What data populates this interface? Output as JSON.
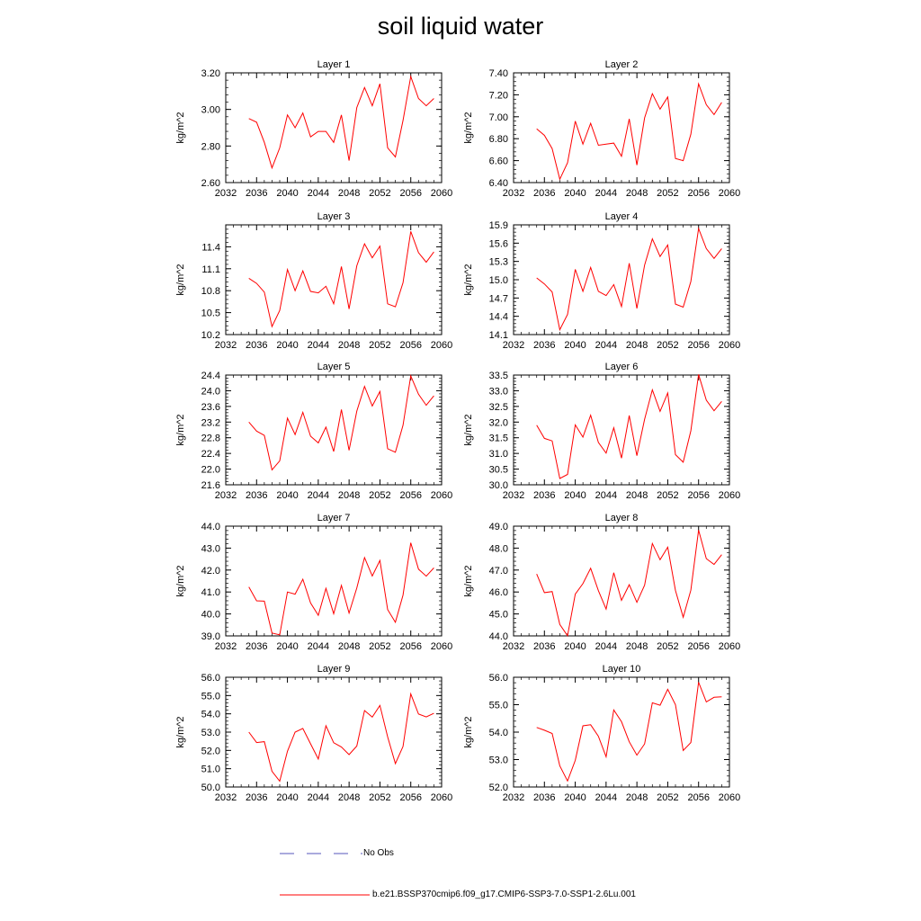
{
  "title": "soil liquid water",
  "legend": {
    "obs_label": "No Obs",
    "obs_color": "#5555bb",
    "model_label": "b.e21.BSSP370cmip6.f09_g17.CMIP6-SSP3-7.0-SSP1-2.6Lu.001",
    "model_color": "#ff0000"
  },
  "chart_data": [
    {
      "type": "line",
      "title": "Layer 1",
      "ylabel": "kg/m^2",
      "xlim": [
        2032,
        2060
      ],
      "ylim": [
        2.6,
        3.2
      ],
      "xticks": [
        2032,
        2036,
        2040,
        2044,
        2048,
        2052,
        2056,
        2060
      ],
      "yticks": [
        "2.60",
        "2.80",
        "3.00",
        "3.20"
      ],
      "x": [
        2035,
        2036,
        2037,
        2038,
        2039,
        2040,
        2041,
        2042,
        2043,
        2044,
        2045,
        2046,
        2047,
        2048,
        2049,
        2050,
        2051,
        2052,
        2053,
        2054,
        2055,
        2056,
        2057,
        2058,
        2059
      ],
      "series": [
        {
          "name": "b.e21.BSSP370cmip6.f09_g17.CMIP6-SSP3-7.0-SSP1-2.6Lu.001",
          "values": [
            2.95,
            2.93,
            2.82,
            2.68,
            2.79,
            2.97,
            2.9,
            2.98,
            2.85,
            2.88,
            2.88,
            2.82,
            2.97,
            2.72,
            3.01,
            3.12,
            3.02,
            3.14,
            2.79,
            2.74,
            2.94,
            3.18,
            3.06,
            3.02,
            3.06
          ]
        }
      ]
    },
    {
      "type": "line",
      "title": "Layer 2",
      "ylabel": "kg/m^2",
      "xlim": [
        2032,
        2060
      ],
      "ylim": [
        6.4,
        7.4
      ],
      "xticks": [
        2032,
        2036,
        2040,
        2044,
        2048,
        2052,
        2056,
        2060
      ],
      "yticks": [
        "6.40",
        "6.60",
        "6.80",
        "7.00",
        "7.20",
        "7.40"
      ],
      "x": [
        2035,
        2036,
        2037,
        2038,
        2039,
        2040,
        2041,
        2042,
        2043,
        2044,
        2045,
        2046,
        2047,
        2048,
        2049,
        2050,
        2051,
        2052,
        2053,
        2054,
        2055,
        2056,
        2057,
        2058,
        2059
      ],
      "series": [
        {
          "name": "b.e21.BSSP370cmip6.f09_g17.CMIP6-SSP3-7.0-SSP1-2.6Lu.001",
          "values": [
            6.89,
            6.83,
            6.71,
            6.43,
            6.58,
            6.96,
            6.75,
            6.94,
            6.74,
            6.75,
            6.76,
            6.64,
            6.98,
            6.56,
            6.99,
            7.21,
            7.07,
            7.18,
            6.62,
            6.6,
            6.84,
            7.3,
            7.11,
            7.02,
            7.13
          ]
        }
      ]
    },
    {
      "type": "line",
      "title": "Layer 3",
      "ylabel": "kg/m^2",
      "xlim": [
        2032,
        2060
      ],
      "ylim": [
        10.2,
        11.7
      ],
      "xticks": [
        2032,
        2036,
        2040,
        2044,
        2048,
        2052,
        2056,
        2060
      ],
      "yticks": [
        "10.2",
        "10.5",
        "10.8",
        "11.1",
        "11.4"
      ],
      "x": [
        2035,
        2036,
        2037,
        2038,
        2039,
        2040,
        2041,
        2042,
        2043,
        2044,
        2045,
        2046,
        2047,
        2048,
        2049,
        2050,
        2051,
        2052,
        2053,
        2054,
        2055,
        2056,
        2057,
        2058,
        2059
      ],
      "series": [
        {
          "name": "b.e21.BSSP370cmip6.f09_g17.CMIP6-SSP3-7.0-SSP1-2.6Lu.001",
          "values": [
            10.97,
            10.9,
            10.78,
            10.31,
            10.53,
            11.09,
            10.8,
            11.07,
            10.79,
            10.77,
            10.86,
            10.62,
            11.13,
            10.55,
            11.14,
            11.44,
            11.25,
            11.41,
            10.62,
            10.58,
            10.91,
            11.61,
            11.32,
            11.19,
            11.33
          ]
        }
      ]
    },
    {
      "type": "line",
      "title": "Layer 4",
      "ylabel": "kg/m^2",
      "xlim": [
        2032,
        2060
      ],
      "ylim": [
        14.1,
        15.9
      ],
      "xticks": [
        2032,
        2036,
        2040,
        2044,
        2048,
        2052,
        2056,
        2060
      ],
      "yticks": [
        "14.1",
        "14.4",
        "14.7",
        "15.0",
        "15.3",
        "15.6",
        "15.9"
      ],
      "x": [
        2035,
        2036,
        2037,
        2038,
        2039,
        2040,
        2041,
        2042,
        2043,
        2044,
        2045,
        2046,
        2047,
        2048,
        2049,
        2050,
        2051,
        2052,
        2053,
        2054,
        2055,
        2056,
        2057,
        2058,
        2059
      ],
      "series": [
        {
          "name": "b.e21.BSSP370cmip6.f09_g17.CMIP6-SSP3-7.0-SSP1-2.6Lu.001",
          "values": [
            15.03,
            14.93,
            14.8,
            14.18,
            14.43,
            15.17,
            14.81,
            15.2,
            14.81,
            14.74,
            14.92,
            14.56,
            15.27,
            14.53,
            15.24,
            15.67,
            15.38,
            15.57,
            14.6,
            14.55,
            14.97,
            15.84,
            15.51,
            15.35,
            15.51
          ]
        }
      ]
    },
    {
      "type": "line",
      "title": "Layer 5",
      "ylabel": "kg/m^2",
      "xlim": [
        2032,
        2060
      ],
      "ylim": [
        21.6,
        24.4
      ],
      "xticks": [
        2032,
        2036,
        2040,
        2044,
        2048,
        2052,
        2056,
        2060
      ],
      "yticks": [
        "21.6",
        "22.0",
        "22.4",
        "22.8",
        "23.2",
        "23.6",
        "24.0",
        "24.4"
      ],
      "x": [
        2035,
        2036,
        2037,
        2038,
        2039,
        2040,
        2041,
        2042,
        2043,
        2044,
        2045,
        2046,
        2047,
        2048,
        2049,
        2050,
        2051,
        2052,
        2053,
        2054,
        2055,
        2056,
        2057,
        2058,
        2059
      ],
      "series": [
        {
          "name": "b.e21.BSSP370cmip6.f09_g17.CMIP6-SSP3-7.0-SSP1-2.6Lu.001",
          "values": [
            23.2,
            22.97,
            22.86,
            21.98,
            22.21,
            23.3,
            22.88,
            23.45,
            22.84,
            22.67,
            23.07,
            22.45,
            23.52,
            22.48,
            23.48,
            24.11,
            23.61,
            23.98,
            22.52,
            22.43,
            23.12,
            24.38,
            23.91,
            23.63,
            23.87
          ]
        }
      ]
    },
    {
      "type": "line",
      "title": "Layer 6",
      "ylabel": "kg/m^2",
      "xlim": [
        2032,
        2060
      ],
      "ylim": [
        30.0,
        33.5
      ],
      "xticks": [
        2032,
        2036,
        2040,
        2044,
        2048,
        2052,
        2056,
        2060
      ],
      "yticks": [
        "30.0",
        "30.5",
        "31.0",
        "31.5",
        "32.0",
        "32.5",
        "33.0",
        "33.5"
      ],
      "x": [
        2035,
        2036,
        2037,
        2038,
        2039,
        2040,
        2041,
        2042,
        2043,
        2044,
        2045,
        2046,
        2047,
        2048,
        2049,
        2050,
        2051,
        2052,
        2053,
        2054,
        2055,
        2056,
        2057,
        2058,
        2059
      ],
      "series": [
        {
          "name": "b.e21.BSSP370cmip6.f09_g17.CMIP6-SSP3-7.0-SSP1-2.6Lu.001",
          "values": [
            31.9,
            31.48,
            31.4,
            30.2,
            30.33,
            31.91,
            31.52,
            32.22,
            31.35,
            31.01,
            31.82,
            30.85,
            32.21,
            30.93,
            32.09,
            33.03,
            32.34,
            32.93,
            30.96,
            30.72,
            31.72,
            33.52,
            32.7,
            32.36,
            32.66
          ]
        }
      ]
    },
    {
      "type": "line",
      "title": "Layer 7",
      "ylabel": "kg/m^2",
      "xlim": [
        2032,
        2060
      ],
      "ylim": [
        39.0,
        44.0
      ],
      "xticks": [
        2032,
        2036,
        2040,
        2044,
        2048,
        2052,
        2056,
        2060
      ],
      "yticks": [
        "39.0",
        "40.0",
        "41.0",
        "42.0",
        "43.0",
        "44.0"
      ],
      "x": [
        2035,
        2036,
        2037,
        2038,
        2039,
        2040,
        2041,
        2042,
        2043,
        2044,
        2045,
        2046,
        2047,
        2048,
        2049,
        2050,
        2051,
        2052,
        2053,
        2054,
        2055,
        2056,
        2057,
        2058,
        2059
      ],
      "series": [
        {
          "name": "b.e21.BSSP370cmip6.f09_g17.CMIP6-SSP3-7.0-SSP1-2.6Lu.001",
          "values": [
            41.23,
            40.6,
            40.58,
            39.13,
            39.05,
            41.0,
            40.9,
            41.58,
            40.5,
            39.94,
            41.17,
            40.01,
            41.3,
            40.04,
            41.18,
            42.57,
            41.73,
            42.44,
            40.2,
            39.62,
            40.86,
            43.24,
            42.04,
            41.72,
            42.1
          ]
        }
      ]
    },
    {
      "type": "line",
      "title": "Layer 8",
      "ylabel": "kg/m^2",
      "xlim": [
        2032,
        2060
      ],
      "ylim": [
        44.0,
        49.0
      ],
      "xticks": [
        2032,
        2036,
        2040,
        2044,
        2048,
        2052,
        2056,
        2060
      ],
      "yticks": [
        "44.0",
        "45.0",
        "46.0",
        "47.0",
        "48.0",
        "49.0"
      ],
      "x": [
        2035,
        2036,
        2037,
        2038,
        2039,
        2040,
        2041,
        2042,
        2043,
        2044,
        2045,
        2046,
        2047,
        2048,
        2049,
        2050,
        2051,
        2052,
        2053,
        2054,
        2055,
        2056,
        2057,
        2058,
        2059
      ],
      "series": [
        {
          "name": "b.e21.BSSP370cmip6.f09_g17.CMIP6-SSP3-7.0-SSP1-2.6Lu.001",
          "values": [
            46.82,
            45.97,
            46.02,
            44.52,
            44.01,
            45.9,
            46.38,
            47.08,
            46.06,
            45.22,
            46.88,
            45.62,
            46.33,
            45.53,
            46.31,
            48.21,
            47.47,
            48.04,
            46.07,
            44.85,
            46.08,
            48.82,
            47.52,
            47.26,
            47.7
          ]
        }
      ]
    },
    {
      "type": "line",
      "title": "Layer 9",
      "ylabel": "kg/m^2",
      "xlim": [
        2032,
        2060
      ],
      "ylim": [
        50.0,
        56.0
      ],
      "xticks": [
        2032,
        2036,
        2040,
        2044,
        2048,
        2052,
        2056,
        2060
      ],
      "yticks": [
        "50.0",
        "51.0",
        "52.0",
        "53.0",
        "54.0",
        "55.0",
        "56.0"
      ],
      "x": [
        2035,
        2036,
        2037,
        2038,
        2039,
        2040,
        2041,
        2042,
        2043,
        2044,
        2045,
        2046,
        2047,
        2048,
        2049,
        2050,
        2051,
        2052,
        2053,
        2054,
        2055,
        2056,
        2057,
        2058,
        2059
      ],
      "series": [
        {
          "name": "b.e21.BSSP370cmip6.f09_g17.CMIP6-SSP3-7.0-SSP1-2.6Lu.001",
          "values": [
            53.0,
            52.43,
            52.48,
            50.86,
            50.32,
            51.95,
            53.0,
            53.2,
            52.36,
            51.53,
            53.35,
            52.42,
            52.19,
            51.77,
            52.24,
            54.18,
            53.82,
            54.46,
            52.74,
            51.28,
            52.22,
            55.09,
            53.99,
            53.83,
            54.03
          ]
        }
      ]
    },
    {
      "type": "line",
      "title": "Layer 10",
      "ylabel": "kg/m^2",
      "xlim": [
        2032,
        2060
      ],
      "ylim": [
        52.0,
        56.0
      ],
      "xticks": [
        2032,
        2036,
        2040,
        2044,
        2048,
        2052,
        2056,
        2060
      ],
      "yticks": [
        "52.0",
        "53.0",
        "54.0",
        "55.0",
        "56.0"
      ],
      "x": [
        2035,
        2036,
        2037,
        2038,
        2039,
        2040,
        2041,
        2042,
        2043,
        2044,
        2045,
        2046,
        2047,
        2048,
        2049,
        2050,
        2051,
        2052,
        2053,
        2054,
        2055,
        2056,
        2057,
        2058,
        2059
      ],
      "series": [
        {
          "name": "b.e21.BSSP370cmip6.f09_g17.CMIP6-SSP3-7.0-SSP1-2.6Lu.001",
          "values": [
            54.17,
            54.07,
            53.95,
            52.77,
            52.22,
            52.97,
            54.23,
            54.27,
            53.85,
            53.1,
            54.81,
            54.38,
            53.65,
            53.16,
            53.57,
            55.07,
            54.98,
            55.56,
            55.0,
            53.33,
            53.62,
            55.82,
            55.1,
            55.27,
            55.29
          ]
        }
      ]
    }
  ]
}
